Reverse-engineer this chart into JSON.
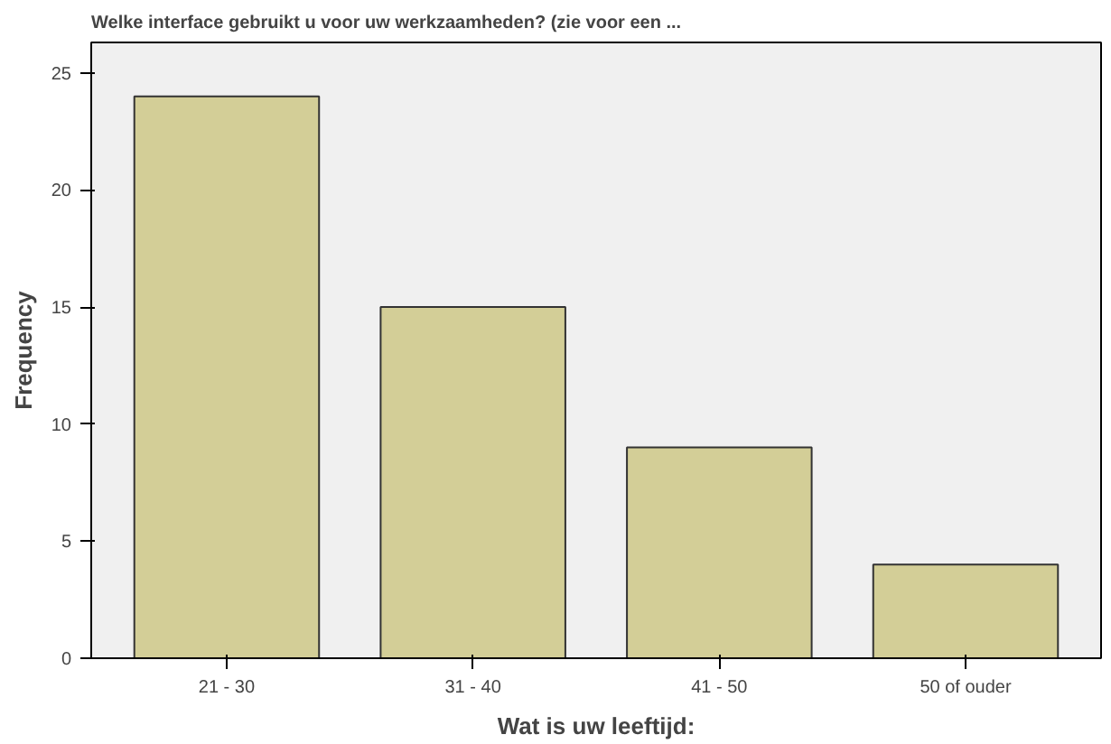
{
  "chart_data": {
    "type": "bar",
    "title": "Welke interface gebruikt u voor uw werkzaamheden? (zie voor een ...",
    "xlabel": "Wat is uw leeftijd:",
    "ylabel": "Frequency",
    "categories": [
      "21 - 30",
      "31 - 40",
      "41 - 50",
      "50 of ouder"
    ],
    "values": [
      24,
      15,
      9,
      4
    ],
    "color": "#d3ce97",
    "ylim": [
      0,
      26.3
    ],
    "yticks": [
      0,
      5,
      10,
      15,
      20,
      25
    ],
    "grid": false
  }
}
